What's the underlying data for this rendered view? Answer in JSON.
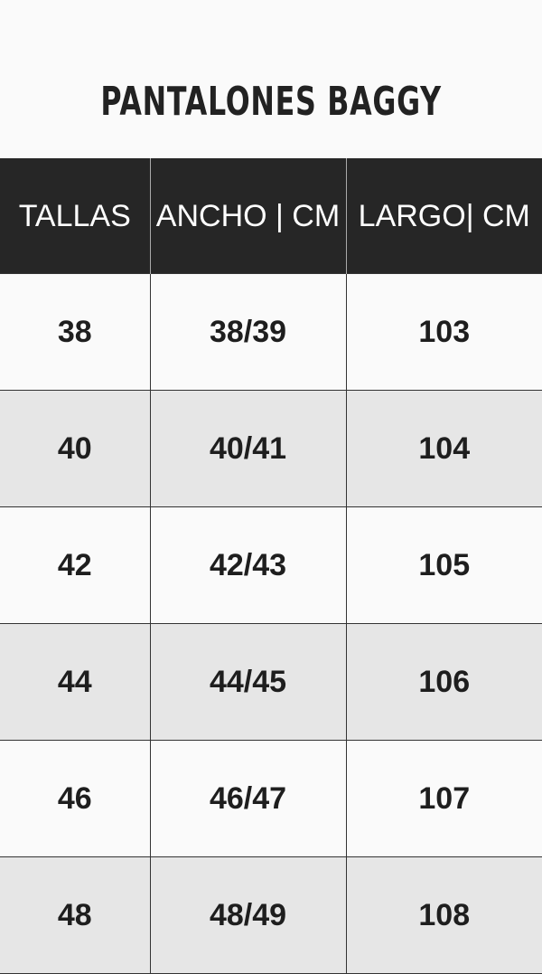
{
  "title": "PANTALONES BAGGY",
  "headers": [
    "TALLAS",
    "ANCHO | CM",
    "LARGO| CM"
  ],
  "rows": [
    [
      "38",
      "38/39",
      "103"
    ],
    [
      "40",
      "40/41",
      "104"
    ],
    [
      "42",
      "42/43",
      "105"
    ],
    [
      "44",
      "44/45",
      "106"
    ],
    [
      "46",
      "46/47",
      "107"
    ],
    [
      "48",
      "48/49",
      "108"
    ]
  ]
}
